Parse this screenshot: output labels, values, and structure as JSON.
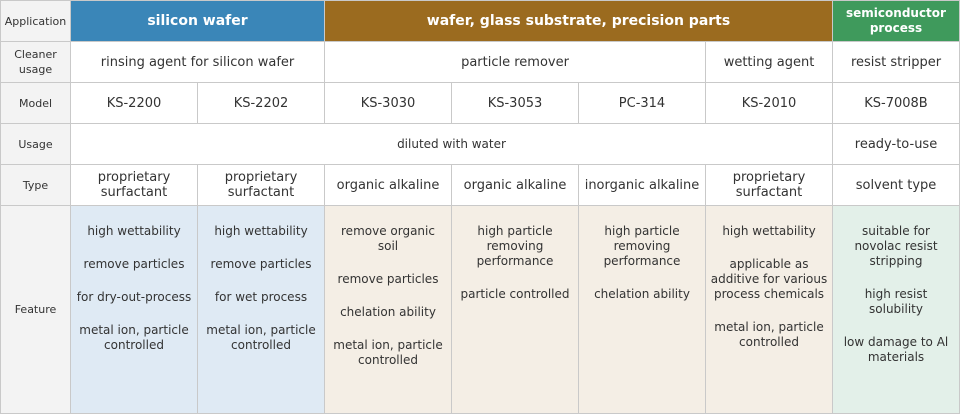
{
  "rows": {
    "application": {
      "label": "Application",
      "cells": [
        "silicon wafer",
        "wafer, glass substrate, precision parts",
        "semiconductor process"
      ]
    },
    "cleaner_usage": {
      "label": "Cleaner usage",
      "cells": [
        "rinsing agent for silicon wafer",
        "particle remover",
        "wetting agent",
        "resist stripper"
      ]
    },
    "model": {
      "label": "Model",
      "cells": [
        "KS-2200",
        "KS-2202",
        "KS-3030",
        "KS-3053",
        "PC-314",
        "KS-2010",
        "KS-7008B"
      ]
    },
    "usage": {
      "label": "Usage",
      "cells": [
        "diluted with water",
        "ready-to-use"
      ]
    },
    "type": {
      "label": "Type",
      "cells": [
        "proprietary surfactant",
        "proprietary surfactant",
        "organic alkaline",
        "organic alkaline",
        "inorganic alkaline",
        "proprietary surfactant",
        "solvent type"
      ]
    },
    "feature": {
      "label": "Feature",
      "cells": [
        [
          "high wettability",
          "remove particles",
          "for dry-out-process",
          "metal ion, particle controlled"
        ],
        [
          "high wettability",
          "remove particles",
          "for wet process",
          "metal ion, particle controlled"
        ],
        [
          "remove organic soil",
          "remove particles",
          "chelation ability",
          "metal ion, particle controlled"
        ],
        [
          "high particle removing performance",
          "particle controlled"
        ],
        [
          "high particle removing performance",
          "chelation ability"
        ],
        [
          "high wettability",
          "applicable as additive for various process chemicals",
          "metal ion, particle controlled"
        ],
        [
          "suitable for novolac resist stripping",
          "high resist solubility",
          "low damage to Al materials"
        ]
      ]
    }
  }
}
